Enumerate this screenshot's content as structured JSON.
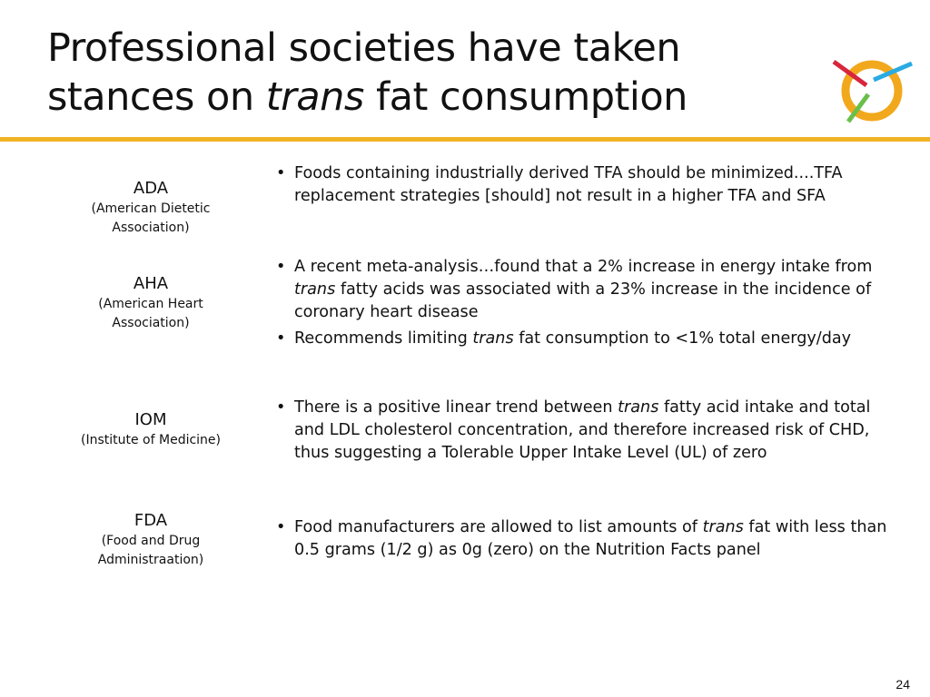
{
  "title": {
    "lines": [
      [
        {
          "text": "Professional societies have taken"
        }
      ],
      [
        {
          "text": "stances on "
        },
        {
          "text": "trans",
          "italic": true
        },
        {
          "text": " fat consumption"
        }
      ]
    ]
  },
  "rows": [
    {
      "org": "ADA",
      "full": [
        "(American Dietetic",
        "Association)"
      ],
      "bullets": [
        [
          {
            "text": "Foods containing industrially derived TFA should be minimized....TFA replacement strategies [should] not result in a higher TFA and SFA"
          }
        ]
      ]
    },
    {
      "org": "AHA",
      "full": [
        "(American Heart",
        "Association)"
      ],
      "bullets": [
        [
          {
            "text": "A recent meta-analysis…found that a 2% increase in energy intake from "
          },
          {
            "text": "trans",
            "italic": true
          },
          {
            "text": " fatty acids was associated with a 23% increase in the incidence of coronary heart disease"
          }
        ],
        [
          {
            "text": "Recommends limiting "
          },
          {
            "text": "trans",
            "italic": true
          },
          {
            "text": " fat consumption to <1% total energy/day"
          }
        ]
      ]
    },
    {
      "org": "IOM",
      "full": [
        "(Institute of Medicine)"
      ],
      "bullets": [
        [
          {
            "text": "There is a positive linear trend between "
          },
          {
            "text": "trans",
            "italic": true
          },
          {
            "text": " fatty acid intake and total and LDL cholesterol concentration, and therefore increased risk of CHD, thus suggesting a Tolerable Upper Intake Level (UL) of zero"
          }
        ]
      ]
    },
    {
      "org": "FDA",
      "full": [
        "(Food and Drug",
        "Administraation)"
      ],
      "bullets": [
        [
          {
            "text": "Food manufacturers are allowed to list amounts of "
          },
          {
            "text": "trans",
            "italic": true
          },
          {
            "text": " fat with less than 0.5 grams (1/2 g) as 0g (zero) on the Nutrition Facts panel"
          }
        ]
      ]
    }
  ],
  "page_number": "24"
}
